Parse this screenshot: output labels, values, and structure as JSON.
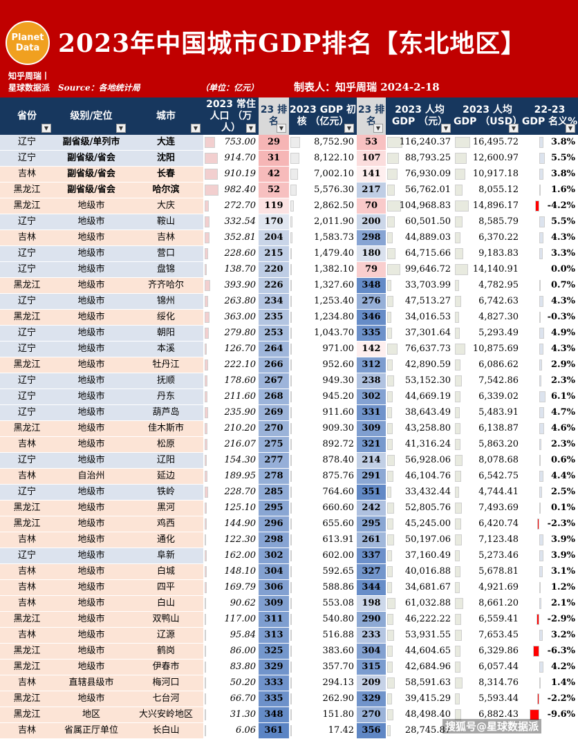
{
  "header": {
    "logo_line1": "Planet",
    "logo_line2": "Data",
    "title": "2023年中国城市GDP排名【东北地区】",
    "brand_line1": "知乎周瑞丨",
    "brand_line2": "星球数据派",
    "source": "Source：各地统计局",
    "unit": "（单位：亿元）",
    "maker": "制表人：知乎周瑞 2024-2-18"
  },
  "columns": {
    "province": "省份",
    "level": "级别/定位",
    "city": "城市",
    "population": "2023 常住人口 （万人）",
    "rank1": "23 排名",
    "gdp": "2023 GDP 初核 （亿元）",
    "rank2": "23 排名",
    "pc_cny": "2023 人均GDP （元）",
    "pc_usd": "2023 人均GDP （USD）",
    "change": "22-23 GDP 名义%"
  },
  "colors": {
    "header_red": "#c00000",
    "header_navy": "#17375e",
    "liaoning": "#dce3ee",
    "jilin": "#fce4d6",
    "heilongjiang": "#fce4d6",
    "rank_high": "#f4a6a6",
    "rank_low": "#5b84c4",
    "neg_bar": "#ff0000",
    "pos_bar": "#dce3ee"
  },
  "watermark": "搜狐号@星球数据派",
  "chart_data": {
    "type": "table",
    "title": "2023年中国城市GDP排名【东北地区】",
    "rows": [
      {
        "province": "辽宁",
        "level": "副省级/单列市",
        "city": "大连",
        "population": "753.00",
        "rank1": "29",
        "gdp": "8,752.90",
        "rank2": "53",
        "pc_cny": "116,240.37",
        "pc_usd": "16,495.72",
        "change": "3.8%"
      },
      {
        "province": "辽宁",
        "level": "副省级/省会",
        "city": "沈阳",
        "population": "914.70",
        "rank1": "31",
        "gdp": "8,122.10",
        "rank2": "107",
        "pc_cny": "88,793.25",
        "pc_usd": "12,600.97",
        "change": "5.5%"
      },
      {
        "province": "吉林",
        "level": "副省级/省会",
        "city": "长春",
        "population": "910.19",
        "rank1": "42",
        "gdp": "7,002.10",
        "rank2": "141",
        "pc_cny": "76,930.09",
        "pc_usd": "10,917.18",
        "change": "3.8%"
      },
      {
        "province": "黑龙江",
        "level": "副省级/省会",
        "city": "哈尔滨",
        "population": "982.40",
        "rank1": "52",
        "gdp": "5,576.30",
        "rank2": "217",
        "pc_cny": "56,762.01",
        "pc_usd": "8,055.12",
        "change": "1.6%"
      },
      {
        "province": "黑龙江",
        "level": "地级市",
        "city": "大庆",
        "population": "272.70",
        "rank1": "119",
        "gdp": "2,862.50",
        "rank2": "70",
        "pc_cny": "104,968.83",
        "pc_usd": "14,896.17",
        "change": "-4.2%"
      },
      {
        "province": "辽宁",
        "level": "地级市",
        "city": "鞍山",
        "population": "332.54",
        "rank1": "170",
        "gdp": "2,011.90",
        "rank2": "200",
        "pc_cny": "60,501.50",
        "pc_usd": "8,585.79",
        "change": "5.5%"
      },
      {
        "province": "吉林",
        "level": "地级市",
        "city": "吉林",
        "population": "352.81",
        "rank1": "204",
        "gdp": "1,583.73",
        "rank2": "298",
        "pc_cny": "44,889.03",
        "pc_usd": "6,370.22",
        "change": "4.3%"
      },
      {
        "province": "辽宁",
        "level": "地级市",
        "city": "营口",
        "population": "228.60",
        "rank1": "215",
        "gdp": "1,479.40",
        "rank2": "180",
        "pc_cny": "64,715.66",
        "pc_usd": "9,183.83",
        "change": "3.3%"
      },
      {
        "province": "辽宁",
        "level": "地级市",
        "city": "盘锦",
        "population": "138.70",
        "rank1": "220",
        "gdp": "1,382.10",
        "rank2": "79",
        "pc_cny": "99,646.72",
        "pc_usd": "14,140.91",
        "change": "0.0%"
      },
      {
        "province": "黑龙江",
        "level": "地级市",
        "city": "齐齐哈尔",
        "population": "393.90",
        "rank1": "226",
        "gdp": "1,327.60",
        "rank2": "348",
        "pc_cny": "33,703.99",
        "pc_usd": "4,782.95",
        "change": "0.7%"
      },
      {
        "province": "辽宁",
        "level": "地级市",
        "city": "锦州",
        "population": "263.80",
        "rank1": "234",
        "gdp": "1,253.40",
        "rank2": "276",
        "pc_cny": "47,513.27",
        "pc_usd": "6,742.63",
        "change": "4.3%"
      },
      {
        "province": "黑龙江",
        "level": "地级市",
        "city": "绥化",
        "population": "363.00",
        "rank1": "235",
        "gdp": "1,234.80",
        "rank2": "346",
        "pc_cny": "34,016.53",
        "pc_usd": "4,827.30",
        "change": "-0.3%"
      },
      {
        "province": "辽宁",
        "level": "地级市",
        "city": "朝阳",
        "population": "279.80",
        "rank1": "253",
        "gdp": "1,043.70",
        "rank2": "335",
        "pc_cny": "37,301.64",
        "pc_usd": "5,293.49",
        "change": "4.9%"
      },
      {
        "province": "辽宁",
        "level": "地级市",
        "city": "本溪",
        "population": "126.70",
        "rank1": "264",
        "gdp": "971.00",
        "rank2": "142",
        "pc_cny": "76,637.73",
        "pc_usd": "10,875.69",
        "change": "4.3%"
      },
      {
        "province": "黑龙江",
        "level": "地级市",
        "city": "牡丹江",
        "population": "222.10",
        "rank1": "266",
        "gdp": "952.60",
        "rank2": "312",
        "pc_cny": "42,890.59",
        "pc_usd": "6,086.62",
        "change": "2.9%"
      },
      {
        "province": "辽宁",
        "level": "地级市",
        "city": "抚顺",
        "population": "178.60",
        "rank1": "267",
        "gdp": "949.30",
        "rank2": "238",
        "pc_cny": "53,152.30",
        "pc_usd": "7,542.86",
        "change": "2.3%"
      },
      {
        "province": "辽宁",
        "level": "地级市",
        "city": "丹东",
        "population": "211.60",
        "rank1": "268",
        "gdp": "945.20",
        "rank2": "302",
        "pc_cny": "44,669.19",
        "pc_usd": "6,339.02",
        "change": "6.1%"
      },
      {
        "province": "辽宁",
        "level": "地级市",
        "city": "葫芦岛",
        "population": "235.90",
        "rank1": "269",
        "gdp": "911.60",
        "rank2": "331",
        "pc_cny": "38,643.49",
        "pc_usd": "5,483.91",
        "change": "4.7%"
      },
      {
        "province": "黑龙江",
        "level": "地级市",
        "city": "佳木斯市",
        "population": "210.20",
        "rank1": "270",
        "gdp": "909.30",
        "rank2": "309",
        "pc_cny": "43,258.80",
        "pc_usd": "6,138.87",
        "change": "4.6%"
      },
      {
        "province": "吉林",
        "level": "地级市",
        "city": "松原",
        "population": "216.07",
        "rank1": "275",
        "gdp": "892.72",
        "rank2": "321",
        "pc_cny": "41,316.24",
        "pc_usd": "5,863.20",
        "change": "2.3%"
      },
      {
        "province": "辽宁",
        "level": "地级市",
        "city": "辽阳",
        "population": "154.30",
        "rank1": "277",
        "gdp": "878.40",
        "rank2": "214",
        "pc_cny": "56,928.06",
        "pc_usd": "8,078.68",
        "change": "0.6%"
      },
      {
        "province": "吉林",
        "level": "自治州",
        "city": "延边",
        "population": "189.95",
        "rank1": "278",
        "gdp": "875.76",
        "rank2": "291",
        "pc_cny": "46,104.76",
        "pc_usd": "6,542.75",
        "change": "4.4%"
      },
      {
        "province": "辽宁",
        "level": "地级市",
        "city": "铁岭",
        "population": "228.70",
        "rank1": "285",
        "gdp": "764.60",
        "rank2": "351",
        "pc_cny": "33,432.44",
        "pc_usd": "4,744.41",
        "change": "2.5%"
      },
      {
        "province": "黑龙江",
        "level": "地级市",
        "city": "黑河",
        "population": "125.10",
        "rank1": "295",
        "gdp": "660.60",
        "rank2": "242",
        "pc_cny": "52,805.76",
        "pc_usd": "7,493.69",
        "change": "0.1%"
      },
      {
        "province": "黑龙江",
        "level": "地级市",
        "city": "鸡西",
        "population": "144.90",
        "rank1": "296",
        "gdp": "655.60",
        "rank2": "295",
        "pc_cny": "45,245.00",
        "pc_usd": "6,420.74",
        "change": "-2.3%"
      },
      {
        "province": "吉林",
        "level": "地级市",
        "city": "通化",
        "population": "122.30",
        "rank1": "298",
        "gdp": "613.91",
        "rank2": "261",
        "pc_cny": "50,197.06",
        "pc_usd": "7,123.48",
        "change": "3.9%"
      },
      {
        "province": "辽宁",
        "level": "地级市",
        "city": "阜新",
        "population": "162.00",
        "rank1": "302",
        "gdp": "602.00",
        "rank2": "337",
        "pc_cny": "37,160.49",
        "pc_usd": "5,273.46",
        "change": "3.9%"
      },
      {
        "province": "吉林",
        "level": "地级市",
        "city": "白城",
        "population": "148.10",
        "rank1": "304",
        "gdp": "592.65",
        "rank2": "327",
        "pc_cny": "40,016.88",
        "pc_usd": "5,678.81",
        "change": "3.1%"
      },
      {
        "province": "吉林",
        "level": "地级市",
        "city": "四平",
        "population": "169.79",
        "rank1": "306",
        "gdp": "588.86",
        "rank2": "344",
        "pc_cny": "34,681.67",
        "pc_usd": "4,921.69",
        "change": "1.2%"
      },
      {
        "province": "吉林",
        "level": "地级市",
        "city": "白山",
        "population": "90.62",
        "rank1": "309",
        "gdp": "553.08",
        "rank2": "198",
        "pc_cny": "61,032.88",
        "pc_usd": "8,661.20",
        "change": "2.1%"
      },
      {
        "province": "黑龙江",
        "level": "地级市",
        "city": "双鸭山",
        "population": "117.00",
        "rank1": "311",
        "gdp": "540.80",
        "rank2": "290",
        "pc_cny": "46,222.22",
        "pc_usd": "6,559.41",
        "change": "-2.9%"
      },
      {
        "province": "吉林",
        "level": "地级市",
        "city": "辽源",
        "population": "95.84",
        "rank1": "313",
        "gdp": "516.88",
        "rank2": "233",
        "pc_cny": "53,931.55",
        "pc_usd": "7,653.45",
        "change": "3.2%"
      },
      {
        "province": "黑龙江",
        "level": "地级市",
        "city": "鹤岗",
        "population": "86.00",
        "rank1": "325",
        "gdp": "383.60",
        "rank2": "304",
        "pc_cny": "44,604.65",
        "pc_usd": "6,329.86",
        "change": "-6.3%"
      },
      {
        "province": "黑龙江",
        "level": "地级市",
        "city": "伊春市",
        "population": "83.80",
        "rank1": "329",
        "gdp": "357.70",
        "rank2": "315",
        "pc_cny": "42,684.96",
        "pc_usd": "6,057.44",
        "change": "4.2%"
      },
      {
        "province": "吉林",
        "level": "直辖县级市",
        "city": "梅河口",
        "population": "50.20",
        "rank1": "333",
        "gdp": "294.13",
        "rank2": "209",
        "pc_cny": "58,591.63",
        "pc_usd": "8,314.76",
        "change": "1.4%"
      },
      {
        "province": "黑龙江",
        "level": "地级市",
        "city": "七台河",
        "population": "66.70",
        "rank1": "335",
        "gdp": "262.90",
        "rank2": "329",
        "pc_cny": "39,415.29",
        "pc_usd": "5,593.44",
        "change": "-2.2%"
      },
      {
        "province": "黑龙江",
        "level": "地区",
        "city": "大兴安岭地区",
        "population": "31.30",
        "rank1": "348",
        "gdp": "151.80",
        "rank2": "270",
        "pc_cny": "48,498.40",
        "pc_usd": "6,882.43",
        "change": "-9.6%"
      },
      {
        "province": "吉林",
        "level": "省属正厅单位",
        "city": "长白山",
        "population": "6.06",
        "rank1": "361",
        "gdp": "17.42",
        "rank2": "356",
        "pc_cny": "28,745.87",
        "pc_usd": "",
        "change": ""
      }
    ]
  }
}
